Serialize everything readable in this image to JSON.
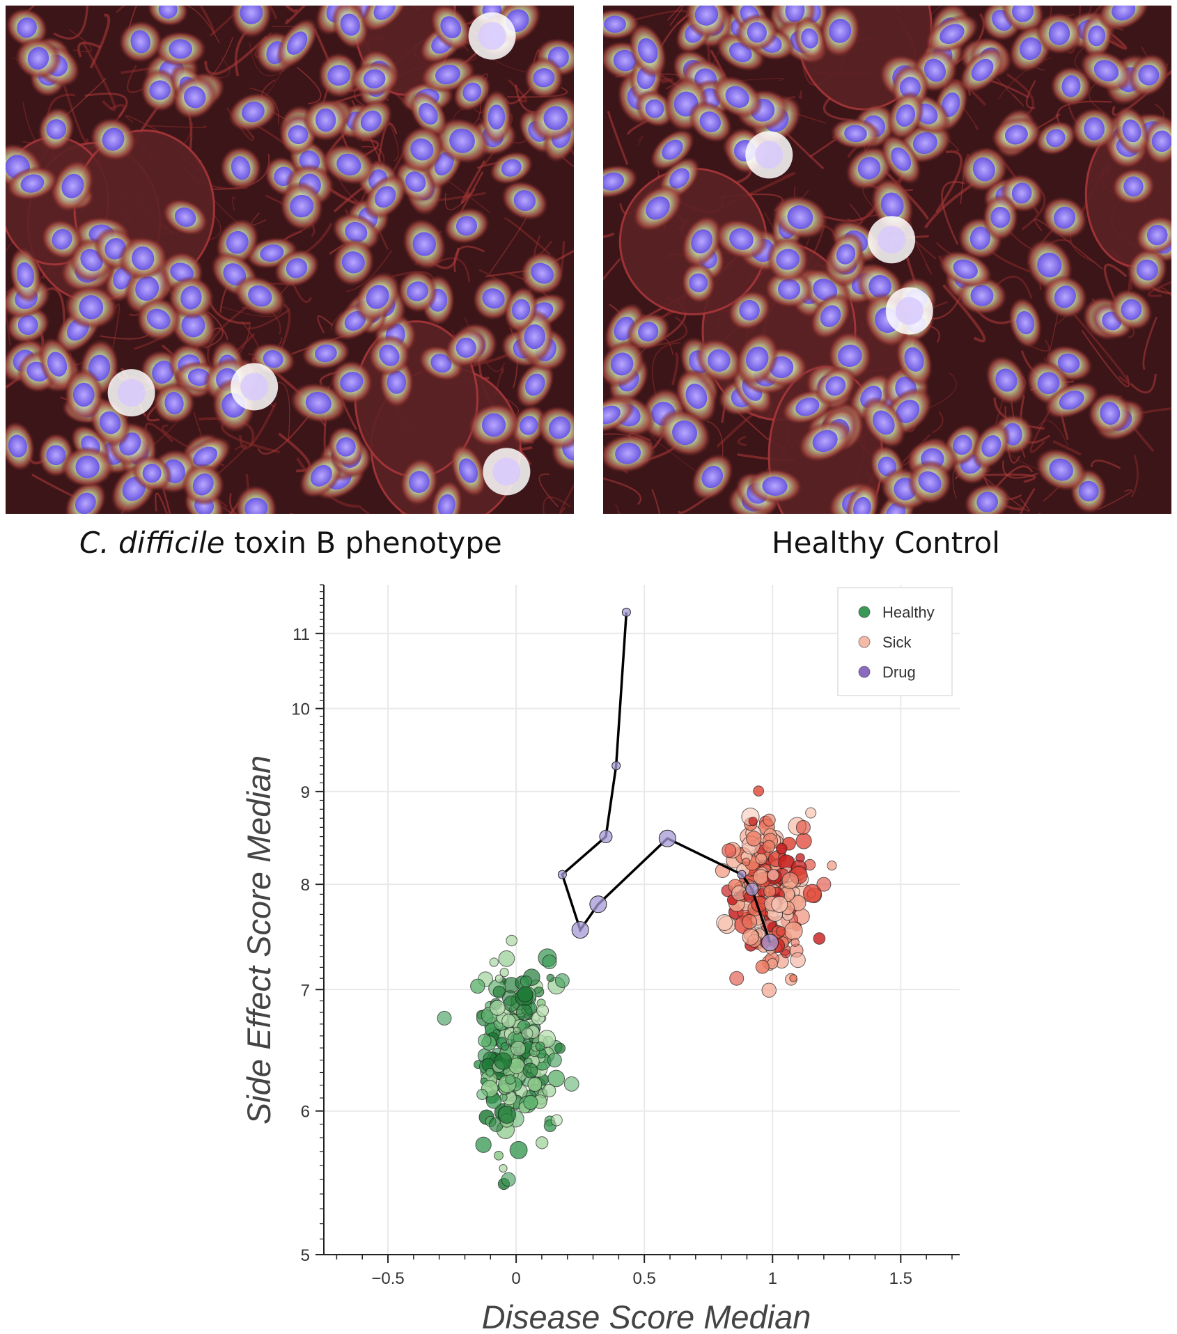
{
  "figure": {
    "left_caption_italic": "C. difficile",
    "left_caption_rest": " toxin B phenotype",
    "right_caption": "Healthy Control",
    "left_image_icon": "microscopy-image-icon",
    "right_image_icon": "microscopy-image-icon"
  },
  "colors": {
    "healthy": "#3a9a55",
    "sick": "#e8735a",
    "drug": "#8a6bbf",
    "path": "#000000"
  },
  "chart_data": {
    "type": "scatter",
    "title": "",
    "xlabel": "Disease Score Median",
    "ylabel": "Side Effect Score Median",
    "xlim": [
      -0.75,
      1.73
    ],
    "ylim": [
      5,
      11.7
    ],
    "yscale": "log",
    "x_ticks": [
      -0.5,
      0,
      0.5,
      1,
      1.5
    ],
    "x_tick_labels": [
      "−0.5",
      "0",
      "0.5",
      "1",
      "1.5"
    ],
    "y_ticks": [
      5,
      6,
      7,
      8,
      9,
      10,
      11
    ],
    "y_tick_labels": [
      "5",
      "6",
      "7",
      "8",
      "9",
      "10",
      "11"
    ],
    "grid": true,
    "legend": {
      "position": "top-right",
      "entries": [
        "Healthy",
        "Sick",
        "Drug"
      ]
    },
    "series": [
      {
        "name": "Healthy",
        "cluster": {
          "x_center": 0.0,
          "y_center": 6.45,
          "x_spread": 0.07,
          "y_spread": 0.33,
          "count": 240
        },
        "outliers": [
          [
            -0.28,
            6.75
          ],
          [
            -0.03,
            5.5
          ],
          [
            0.13,
            7.25
          ],
          [
            0.18,
            7.08
          ],
          [
            0.15,
            6.4
          ]
        ]
      },
      {
        "name": "Sick",
        "cluster": {
          "x_center": 1.0,
          "y_center": 7.9,
          "x_spread": 0.07,
          "y_spread": 0.33,
          "count": 240
        },
        "outliers": [
          [
            0.86,
            7.1
          ],
          [
            1.12,
            8.6
          ],
          [
            0.83,
            8.35
          ],
          [
            1.2,
            8.0
          ]
        ]
      },
      {
        "name": "Drug",
        "points": [
          {
            "x": 0.43,
            "y": 11.3,
            "size": 1
          },
          {
            "x": 0.39,
            "y": 9.3,
            "size": 1
          },
          {
            "x": 0.35,
            "y": 8.5,
            "size": 2
          },
          {
            "x": 0.18,
            "y": 8.1,
            "size": 1
          },
          {
            "x": 0.25,
            "y": 7.55,
            "size": 3
          },
          {
            "x": 0.32,
            "y": 7.8,
            "size": 3
          },
          {
            "x": 0.59,
            "y": 8.48,
            "size": 3
          },
          {
            "x": 0.88,
            "y": 8.1,
            "size": 1
          },
          {
            "x": 0.92,
            "y": 7.95,
            "size": 2
          },
          {
            "x": 0.99,
            "y": 7.43,
            "size": 3
          }
        ]
      }
    ]
  }
}
